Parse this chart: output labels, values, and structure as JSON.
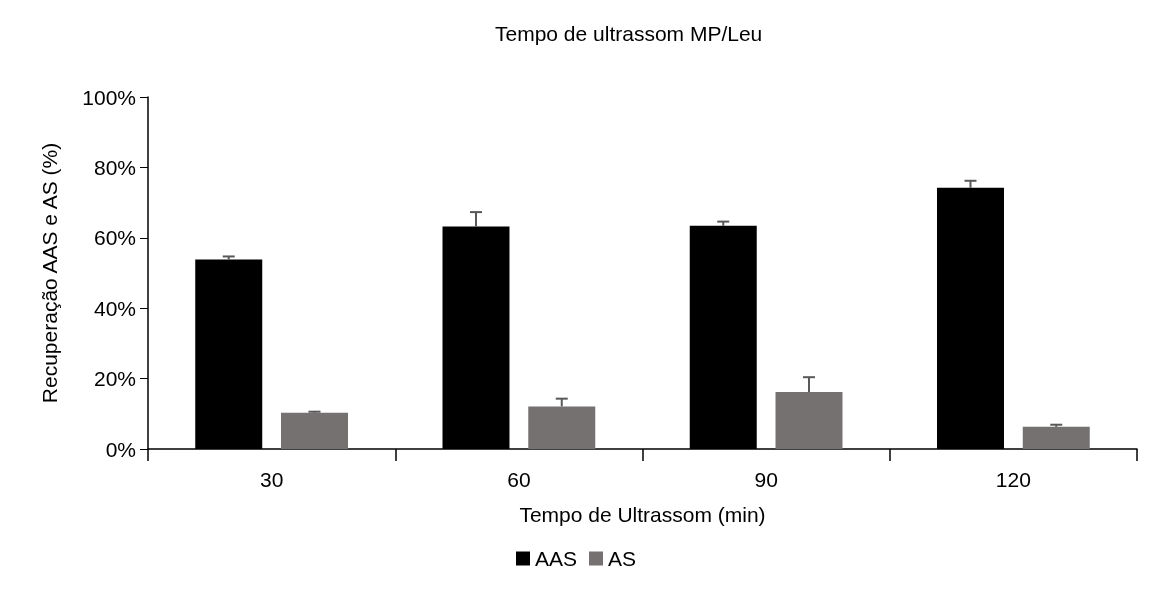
{
  "chart_data": {
    "type": "bar",
    "title": "Tempo de ultrassom MP/Leu",
    "xlabel": "Tempo de Ultrassom (min)",
    "ylabel": "Recuperação AAS e AS (%)",
    "categories": [
      "30",
      "60",
      "90",
      "120"
    ],
    "series": [
      {
        "name": "AAS",
        "color": "#000000",
        "values": [
          53.8,
          63.2,
          63.4,
          74.2
        ],
        "errors": [
          [
            53.8,
            54.7
          ],
          [
            63.2,
            67.3
          ],
          [
            63.4,
            64.6
          ],
          [
            74.2,
            76.2
          ]
        ]
      },
      {
        "name": "AS",
        "color": "#767171",
        "values": [
          10.3,
          12.1,
          16.2,
          6.3
        ],
        "errors": [
          [
            10.3,
            10.6
          ],
          [
            12.1,
            14.3
          ],
          [
            16.2,
            20.4
          ],
          [
            6.3,
            6.9
          ]
        ]
      }
    ],
    "ylim": [
      0,
      100
    ],
    "yticks": [
      {
        "value": 0,
        "label": "0%"
      },
      {
        "value": 20,
        "label": "20%"
      },
      {
        "value": 40,
        "label": "40%"
      },
      {
        "value": 60,
        "label": "60%"
      },
      {
        "value": 80,
        "label": "80%"
      },
      {
        "value": 100,
        "label": "100%"
      }
    ],
    "grid": false,
    "legend": "bottom"
  }
}
